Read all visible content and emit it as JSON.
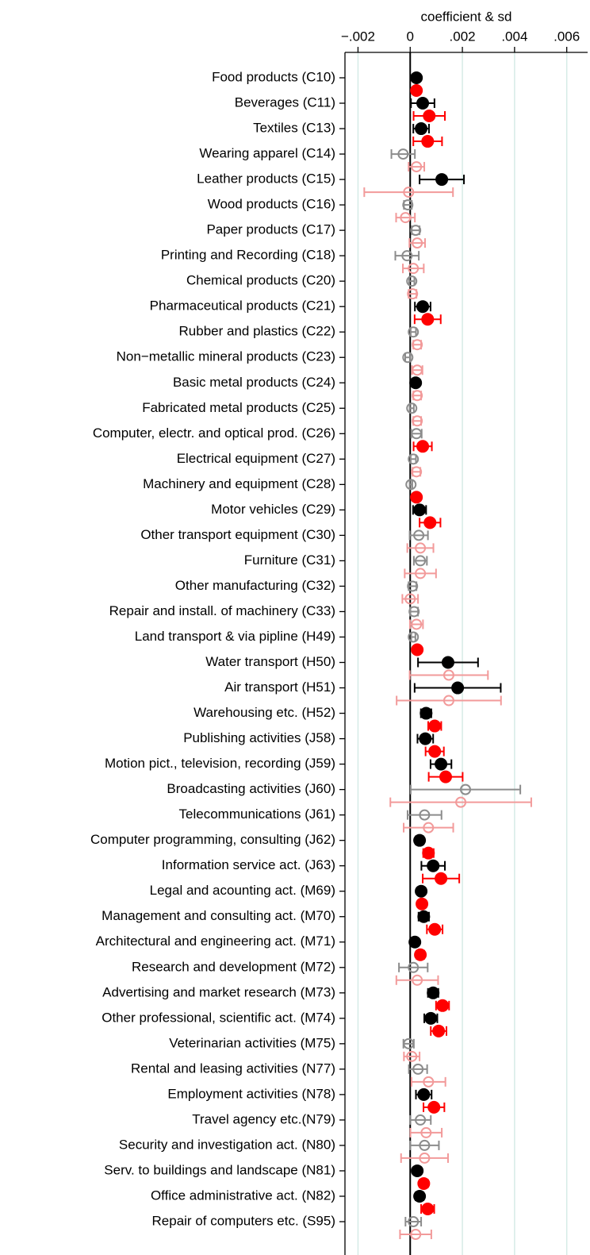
{
  "chart_data": {
    "type": "coefplot",
    "title": "coefficient & sd",
    "xlim": [
      -0.0025,
      0.0068
    ],
    "xticks": [
      {
        "value": -0.002,
        "label": "−.002"
      },
      0,
      {
        "value": 0.002,
        "label": ".002"
      },
      {
        "value": 0.004,
        "label": ".004"
      },
      {
        "value": 0.006,
        "label": ".006"
      }
    ],
    "grid": true,
    "grid_color": "#d6ebe6",
    "xline": 0,
    "categories": [
      "Food products (C10)",
      "Beverages (C11)",
      "Textiles (C13)",
      "Wearing apparel (C14)",
      "Leather products (C15)",
      "Wood products (C16)",
      "Paper products (C17)",
      "Printing and Recording (C18)",
      "Chemical products (C20)",
      "Pharmaceutical products (C21)",
      "Rubber and plastics (C22)",
      "Non−metallic mineral products (C23)",
      "Basic metal products (C24)",
      "Fabricated metal products (C25)",
      "Computer, electr. and optical prod. (C26)",
      "Electrical equipment (C27)",
      "Machinery and equipment (C28)",
      "Motor vehicles (C29)",
      "Other transport equipment (C30)",
      "Furniture (C31)",
      "Other manufacturing (C32)",
      "Repair and install. of machinery (C33)",
      "Land transport & via pipline (H49)",
      "Water transport (H50)",
      "Air transport (H51)",
      "Warehousing etc. (H52)",
      "Publishing activities (J58)",
      "Motion pict., television, recording (J59)",
      "Broadcasting activities (J60)",
      "Telecommunications (J61)",
      "Computer programming, consulting (J62)",
      "Information service act. (J63)",
      "Legal and acounting act. (M69)",
      "Management and consulting act. (M70)",
      "Architectural and engineering act. (M71)",
      "Research and development (M72)",
      "Advertising and market research (M73)",
      "Other professional, scientific act. (M74)",
      "Veterinarian activities (M75)",
      "Rental and leasing activities (N77)",
      "Employment activities (N78)",
      "Travel agency etc.(N79)",
      "Security and investigation act. (N80)",
      "Serv. to buildings and landscape (N81)",
      "Office administrative act. (N82)",
      "Repair of computers etc. (S95)"
    ],
    "series": [
      {
        "color": "#000000",
        "hollow_color": "#8c8c8c",
        "values": [
          0.00024,
          0.00048,
          0.00042,
          -0.00027,
          0.00121,
          -9e-05,
          0.00021,
          -0.00012,
          6e-05,
          0.00048,
          0.00012,
          -9e-05,
          0.00021,
          6e-05,
          0.00024,
          0.00012,
          3e-05,
          0.00036,
          0.00033,
          0.00039,
          9e-05,
          0.00015,
          0.00012,
          0.00145,
          0.00182,
          0.00061,
          0.00058,
          0.00118,
          0.00212,
          0.00055,
          0.00036,
          0.00088,
          0.00042,
          0.00052,
          0.00018,
          0.00012,
          0.00088,
          0.00079,
          -6e-05,
          0.0003,
          0.00052,
          0.00039,
          0.00055,
          0.00027,
          0.00036,
          0.00012
        ],
        "errors": [
          3e-05,
          0.00045,
          0.0003,
          0.00045,
          0.00085,
          0.00015,
          0.00015,
          0.00045,
          0.0001,
          0.0003,
          0.0001,
          0.0001,
          8e-05,
          8e-05,
          0.0002,
          0.0001,
          5e-05,
          0.00025,
          0.00035,
          0.00025,
          0.00015,
          0.00015,
          8e-05,
          0.00115,
          0.00165,
          0.0002,
          0.0003,
          0.0004,
          0.0021,
          0.00065,
          0.00015,
          0.00045,
          0.0001,
          0.0002,
          8e-05,
          0.00055,
          0.0002,
          0.00025,
          0.0002,
          0.00035,
          0.0003,
          0.0004,
          0.00055,
          0.0001,
          0.00015,
          0.0003
        ],
        "filled": [
          true,
          true,
          true,
          false,
          true,
          false,
          false,
          false,
          false,
          true,
          false,
          false,
          true,
          false,
          false,
          false,
          false,
          true,
          false,
          false,
          false,
          false,
          false,
          true,
          true,
          true,
          true,
          true,
          false,
          false,
          true,
          true,
          true,
          true,
          true,
          false,
          true,
          true,
          false,
          false,
          true,
          false,
          false,
          true,
          true,
          false
        ]
      },
      {
        "color": "#ff0000",
        "hollow_color": "#f29a9a",
        "values": [
          0.00024,
          0.00073,
          0.00067,
          0.00024,
          -6e-05,
          -0.00018,
          0.00027,
          0.00012,
          9e-05,
          0.00067,
          0.00027,
          0.00027,
          0.00027,
          0.00027,
          0.00048,
          0.00024,
          0.00024,
          0.00076,
          0.00039,
          0.00039,
          0.0,
          0.00024,
          0.00027,
          0.00148,
          0.00148,
          0.00094,
          0.00094,
          0.00136,
          0.00194,
          0.0007,
          0.0007,
          0.00118,
          0.00045,
          0.00094,
          0.00039,
          0.00027,
          0.00124,
          0.00109,
          6e-05,
          0.0007,
          0.00091,
          0.00061,
          0.00055,
          0.00052,
          0.00067,
          0.00021
        ],
        "errors": [
          3e-05,
          0.0006,
          0.00055,
          0.0003,
          0.0017,
          0.00036,
          0.0003,
          0.0004,
          0.00015,
          0.0005,
          0.00015,
          0.0002,
          0.00015,
          0.00015,
          0.00035,
          0.00015,
          0.0001,
          0.0004,
          0.0005,
          0.0006,
          0.0003,
          0.00025,
          0.0001,
          0.0015,
          0.002,
          0.00025,
          0.00035,
          0.00065,
          0.0027,
          0.00095,
          0.0002,
          0.0007,
          0.0001,
          0.0003,
          0.00015,
          0.0008,
          0.00025,
          0.0003,
          0.0003,
          0.00065,
          0.0004,
          0.0006,
          0.0009,
          0.00015,
          0.00025,
          0.0006
        ],
        "filled": [
          true,
          true,
          true,
          false,
          false,
          false,
          false,
          false,
          false,
          true,
          false,
          false,
          false,
          false,
          true,
          false,
          true,
          true,
          false,
          false,
          false,
          false,
          true,
          false,
          false,
          true,
          true,
          true,
          false,
          false,
          true,
          true,
          true,
          true,
          true,
          false,
          true,
          true,
          false,
          false,
          true,
          false,
          false,
          true,
          true,
          false
        ]
      }
    ]
  }
}
